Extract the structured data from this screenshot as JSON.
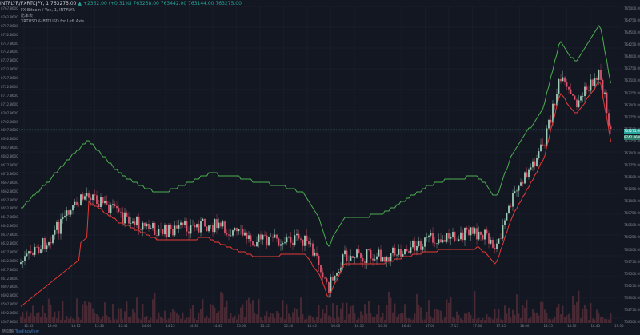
{
  "header": {
    "symbol": "INTFLYR/FXRTCJPY, 1",
    "price": "763275.00",
    "change": "▲ +2352.00 (+0.31%)",
    "ohlc": "763258.00  763442.00  763144.00  763275.00"
  },
  "overlays": [
    "FX Bitcoin / Yen, 1, INTFLYR",
    "比率表",
    "XRTUSD & BTCUSD for Left Axis"
  ],
  "left_axis_labels": [
    "8767.8600",
    "8762.8600",
    "8757.8600",
    "8752.8600",
    "8747.8600",
    "8742.8600",
    "8737.8600",
    "8732.8600",
    "8727.8600",
    "8722.8600",
    "8717.8600",
    "8712.8600",
    "8707.8600",
    "8702.8600",
    "8697.8600",
    "8692.8600",
    "8687.8600",
    "8682.8600",
    "8677.8600",
    "8672.8600",
    "8667.8600",
    "8662.8600",
    "8657.8600",
    "8652.8600",
    "8647.8600",
    "8642.8600",
    "8637.8600",
    "8632.8600",
    "8627.8600",
    "8622.8600",
    "8617.8600",
    "8612.8600",
    "8607.8600",
    "8602.8600",
    "8597.8600",
    "8592.8600",
    "8587.8600"
  ],
  "right_axis_labels": [
    "765000.00",
    "764750.00",
    "764500.00",
    "764250.00",
    "764000.00",
    "763750.00",
    "763500.00",
    "763250.00",
    "763000.00",
    "762750.00",
    "762500.00",
    "762250.00",
    "762000.00",
    "761750.00",
    "761500.00",
    "761250.00",
    "761000.00",
    "760750.00",
    "760500.00",
    "760250.00",
    "760000.00",
    "759750.00",
    "759500.00",
    "759250.00",
    "759000.00",
    "758750.00",
    "758500.00"
  ],
  "price_tags": {
    "current": "763275.00",
    "ratio": "8742.8600"
  },
  "time_labels": [
    "12:45",
    "13:00",
    "13:15",
    "13:30",
    "13:45",
    "14:00",
    "14:15",
    "14:30",
    "14:45",
    "15:00",
    "15:15",
    "15:30",
    "15:45",
    "16:00",
    "16:15",
    "16:30",
    "16:45",
    "17:00",
    "17:15",
    "17:30",
    "17:45",
    "18:00",
    "18:15",
    "18:30",
    "18:45",
    "19:00"
  ],
  "footer": {
    "label": "時間軸",
    "logo": "TradingView"
  },
  "colors": {
    "background": "#131722",
    "green_line": "#4caf50",
    "red_line": "#e53935",
    "candle_up": "#9ecab8",
    "candle_down": "#d9546b",
    "volume": "#4a2a35"
  }
}
